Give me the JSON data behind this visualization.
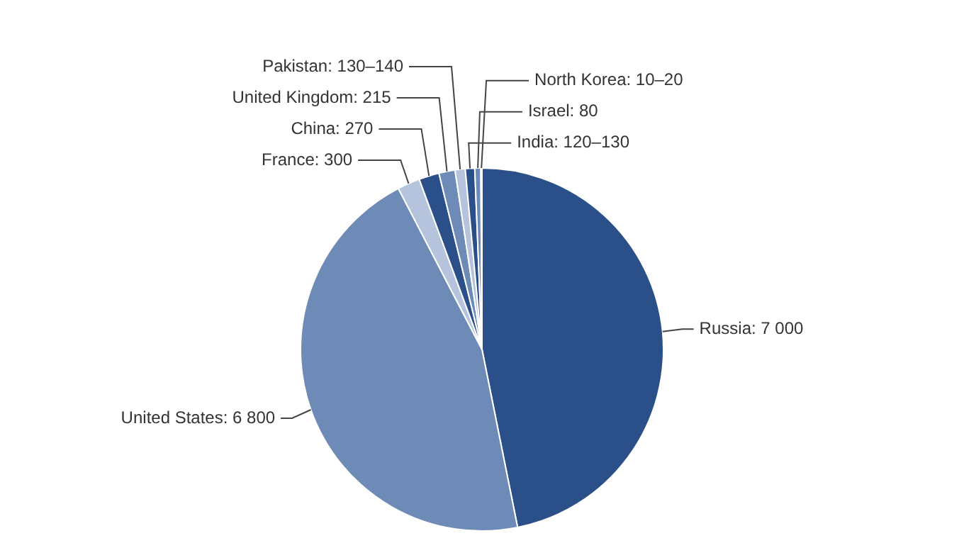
{
  "chart_data": {
    "type": "pie",
    "categories": [
      "Russia",
      "United States",
      "France",
      "China",
      "United Kingdom",
      "Pakistan",
      "India",
      "Israel",
      "North Korea"
    ],
    "values": [
      7000,
      6800,
      300,
      270,
      215,
      135,
      125,
      80,
      15
    ],
    "value_labels": [
      "7 000",
      "6 800",
      "300",
      "270",
      "215",
      "130–140",
      "120–130",
      "80",
      "10–20"
    ],
    "colors": [
      "#2b5089",
      "#6e8bb7",
      "#b5c4dc",
      "#2b5089",
      "#6e8bb7",
      "#b5c4dc",
      "#2b5089",
      "#6e8bb7",
      "#b5c4dc"
    ],
    "legend": false
  }
}
